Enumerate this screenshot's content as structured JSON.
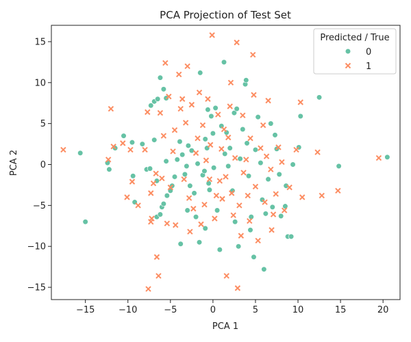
{
  "chart_data": {
    "type": "scatter",
    "title": "PCA Projection of Test Set",
    "xlabel": "PCA 1",
    "ylabel": "PCA 2",
    "xlim": [
      -19,
      22
    ],
    "ylim": [
      -16.5,
      17
    ],
    "x_ticks": [
      -15,
      -10,
      -5,
      0,
      5,
      10,
      15,
      20
    ],
    "y_ticks": [
      -15,
      -10,
      -5,
      0,
      5,
      10,
      15
    ],
    "x_tick_labels": [
      "−15",
      "−10",
      "−5",
      "0",
      "5",
      "10",
      "15",
      "20"
    ],
    "y_tick_labels": [
      "−15",
      "−10",
      "−5",
      "0",
      "5",
      "10",
      "15"
    ],
    "grid": false,
    "legend": {
      "title": "Predicted / True",
      "location": "top-right",
      "entries": [
        {
          "label": "0",
          "color": "#66c2a5",
          "marker": "circle"
        },
        {
          "label": "1",
          "color": "#fc8d62",
          "marker": "x"
        }
      ]
    },
    "series": [
      {
        "name": "0",
        "marker": "circle",
        "color": "#66c2a5",
        "points": [
          [
            -15.6,
            1.4
          ],
          [
            -15.0,
            -7.0
          ],
          [
            -12.2,
            -0.6
          ],
          [
            -12.4,
            0.2
          ],
          [
            -11.5,
            2.0
          ],
          [
            -10.5,
            3.5
          ],
          [
            -9.5,
            2.7
          ],
          [
            -9.2,
            -4.6
          ],
          [
            -9.4,
            -1.4
          ],
          [
            -8.3,
            2.5
          ],
          [
            -7.8,
            -0.6
          ],
          [
            -7.4,
            -0.5
          ],
          [
            -7.3,
            7.2
          ],
          [
            -6.9,
            7.7
          ],
          [
            -6.5,
            8.0
          ],
          [
            -6.2,
            10.6
          ],
          [
            -5.8,
            9.2
          ],
          [
            -5.5,
            8.1
          ],
          [
            -6.6,
            -6.4
          ],
          [
            -6.2,
            -6.1
          ],
          [
            -6.0,
            -5.2
          ],
          [
            -5.8,
            -4.8
          ],
          [
            -5.4,
            -3.8
          ],
          [
            -5.0,
            -3.2
          ],
          [
            -4.8,
            -2.6
          ],
          [
            -6.6,
            -2.0
          ],
          [
            -5.5,
            0.4
          ],
          [
            -4.5,
            -1.5
          ],
          [
            -4.2,
            0.6
          ],
          [
            -3.9,
            2.8
          ],
          [
            -3.6,
            1.2
          ],
          [
            -3.3,
            -1.2
          ],
          [
            -3.8,
            -9.7
          ],
          [
            -3.1,
            -0.2
          ],
          [
            -2.9,
            2.3
          ],
          [
            -2.7,
            -2.6
          ],
          [
            -2.5,
            1.7
          ],
          [
            -2.2,
            -3.5
          ],
          [
            -2.0,
            -6.4
          ],
          [
            -1.8,
            0.1
          ],
          [
            -1.6,
            -9.5
          ],
          [
            -1.5,
            11.2
          ],
          [
            -1.2,
            -1.3
          ],
          [
            -1.0,
            -0.8
          ],
          [
            -0.9,
            3.1
          ],
          [
            -0.7,
            2.0
          ],
          [
            -0.5,
            -2.3
          ],
          [
            -0.4,
            -3.1
          ],
          [
            -0.6,
            6.7
          ],
          [
            -0.2,
            5.9
          ],
          [
            0.0,
            3.8
          ],
          [
            0.1,
            -0.4
          ],
          [
            0.3,
            6.9
          ],
          [
            0.5,
            -5.6
          ],
          [
            0.8,
            -10.4
          ],
          [
            1.0,
            4.7
          ],
          [
            1.3,
            12.5
          ],
          [
            1.4,
            1.3
          ],
          [
            1.6,
            3.9
          ],
          [
            1.8,
            -0.2
          ],
          [
            2.0,
            2.0
          ],
          [
            2.3,
            -3.2
          ],
          [
            2.5,
            6.3
          ],
          [
            2.8,
            6.8
          ],
          [
            3.0,
            -10.0
          ],
          [
            3.2,
            0.7
          ],
          [
            3.5,
            4.3
          ],
          [
            3.8,
            9.8
          ],
          [
            3.9,
            10.3
          ],
          [
            4.0,
            2.6
          ],
          [
            4.2,
            -1.4
          ],
          [
            4.5,
            -6.4
          ],
          [
            4.8,
            -11.3
          ],
          [
            5.0,
            1.8
          ],
          [
            5.3,
            5.8
          ],
          [
            5.6,
            0.2
          ],
          [
            5.8,
            -4.3
          ],
          [
            6.0,
            -12.8
          ],
          [
            6.2,
            -6.0
          ],
          [
            6.5,
            -1.8
          ],
          [
            6.8,
            5.0
          ],
          [
            7.0,
            -5.2
          ],
          [
            7.3,
            3.6
          ],
          [
            7.5,
            1.9
          ],
          [
            7.8,
            -1.2
          ],
          [
            8.0,
            -6.3
          ],
          [
            8.5,
            -5.1
          ],
          [
            8.8,
            -8.8
          ],
          [
            9.2,
            -8.8
          ],
          [
            9.4,
            0.0
          ],
          [
            10.1,
            2.1
          ],
          [
            10.3,
            5.9
          ],
          [
            12.5,
            8.2
          ],
          [
            14.8,
            -0.2
          ],
          [
            20.5,
            0.9
          ],
          [
            8.6,
            -2.6
          ],
          [
            2.6,
            -7.0
          ],
          [
            -0.9,
            -7.8
          ],
          [
            -3.0,
            -5.6
          ],
          [
            -6.9,
            3.0
          ],
          [
            4.4,
            -8.0
          ]
        ]
      },
      {
        "name": "1",
        "marker": "x",
        "color": "#fc8d62",
        "points": [
          [
            -17.6,
            1.8
          ],
          [
            -12.3,
            0.6
          ],
          [
            -12.0,
            6.8
          ],
          [
            -10.6,
            2.6
          ],
          [
            -10.1,
            -4.0
          ],
          [
            -9.7,
            1.8
          ],
          [
            -9.5,
            -2.1
          ],
          [
            -8.8,
            -5.0
          ],
          [
            -8.0,
            1.8
          ],
          [
            -7.7,
            6.4
          ],
          [
            -7.6,
            -15.2
          ],
          [
            -7.3,
            -3.5
          ],
          [
            -7.2,
            -6.6
          ],
          [
            -7.3,
            -7.0
          ],
          [
            -7.0,
            -2.3
          ],
          [
            -6.7,
            -1.1
          ],
          [
            -6.6,
            -11.3
          ],
          [
            -6.4,
            -13.6
          ],
          [
            -6.2,
            6.3
          ],
          [
            -6.0,
            -1.7
          ],
          [
            -5.8,
            3.5
          ],
          [
            -5.6,
            12.4
          ],
          [
            -5.4,
            -7.2
          ],
          [
            -5.2,
            8.3
          ],
          [
            -5.0,
            -2.8
          ],
          [
            -4.7,
            1.6
          ],
          [
            -4.5,
            4.2
          ],
          [
            -4.4,
            -7.4
          ],
          [
            -4.0,
            11.0
          ],
          [
            -3.8,
            6.8
          ],
          [
            -3.6,
            8.0
          ],
          [
            -3.4,
            -1.8
          ],
          [
            -3.2,
            5.1
          ],
          [
            -3.0,
            12.0
          ],
          [
            -2.8,
            -4.1
          ],
          [
            -2.5,
            7.3
          ],
          [
            -2.3,
            -5.4
          ],
          [
            -2.0,
            1.4
          ],
          [
            -1.8,
            3.2
          ],
          [
            -1.6,
            8.8
          ],
          [
            -1.4,
            -7.3
          ],
          [
            -1.2,
            4.8
          ],
          [
            -1.0,
            -4.9
          ],
          [
            -0.8,
            0.5
          ],
          [
            -0.6,
            8.0
          ],
          [
            -0.4,
            -1.8
          ],
          [
            -0.3,
            2.4
          ],
          [
            -0.1,
            15.8
          ],
          [
            0.2,
            -6.6
          ],
          [
            0.4,
            -3.8
          ],
          [
            0.6,
            6.1
          ],
          [
            0.8,
            -2.0
          ],
          [
            1.0,
            1.9
          ],
          [
            1.1,
            -4.2
          ],
          [
            1.3,
            4.3
          ],
          [
            1.5,
            -1.5
          ],
          [
            1.6,
            -13.6
          ],
          [
            1.8,
            3.3
          ],
          [
            2.0,
            7.1
          ],
          [
            2.2,
            -3.5
          ],
          [
            2.4,
            -6.2
          ],
          [
            2.6,
            0.8
          ],
          [
            2.8,
            14.9
          ],
          [
            2.9,
            -15.1
          ],
          [
            3.1,
            -5.0
          ],
          [
            3.3,
            -8.7
          ],
          [
            3.5,
            6.0
          ],
          [
            3.6,
            -1.0
          ],
          [
            3.9,
            0.6
          ],
          [
            4.1,
            -3.8
          ],
          [
            4.3,
            -6.9
          ],
          [
            4.4,
            3.2
          ],
          [
            4.7,
            13.4
          ],
          [
            4.8,
            8.5
          ],
          [
            5.0,
            -2.7
          ],
          [
            5.3,
            -9.3
          ],
          [
            5.6,
            2.0
          ],
          [
            5.9,
            4.8
          ],
          [
            6.1,
            -4.6
          ],
          [
            6.3,
            1.0
          ],
          [
            6.5,
            7.8
          ],
          [
            6.8,
            -0.6
          ],
          [
            7.1,
            -6.1
          ],
          [
            7.4,
            -3.6
          ],
          [
            7.7,
            2.1
          ],
          [
            8.1,
            0.3
          ],
          [
            8.4,
            -5.6
          ],
          [
            9.0,
            -2.8
          ],
          [
            9.8,
            1.8
          ],
          [
            10.3,
            7.6
          ],
          [
            10.5,
            -4.0
          ],
          [
            12.3,
            1.5
          ],
          [
            12.8,
            -3.8
          ],
          [
            14.7,
            -3.2
          ],
          [
            19.5,
            0.8
          ],
          [
            -11.7,
            2.2
          ],
          [
            2.1,
            10.0
          ],
          [
            -2.7,
            -8.2
          ],
          [
            6.9,
            -8.0
          ]
        ]
      }
    ]
  }
}
